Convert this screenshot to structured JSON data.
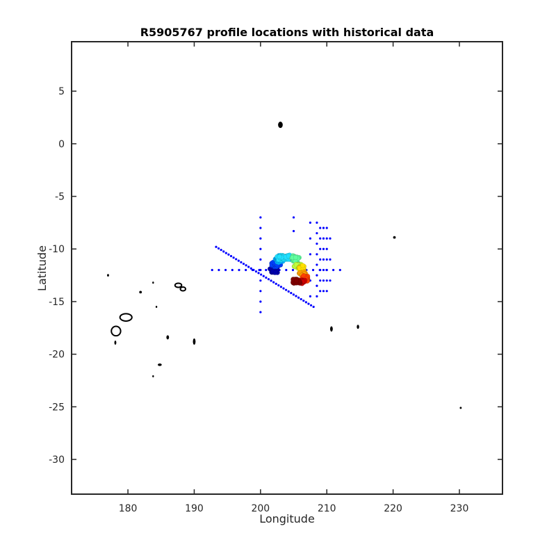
{
  "chart_data": {
    "type": "scatter",
    "title": "R5905767 profile locations with historical data",
    "xlabel": "Longitude",
    "ylabel": "Latitude",
    "xlim": [
      171.5,
      236.5
    ],
    "ylim": [
      -33.3,
      9.7
    ],
    "x_ticks": [
      180,
      190,
      200,
      210,
      220,
      230
    ],
    "y_ticks": [
      5,
      0,
      -5,
      -10,
      -15,
      -20,
      -25,
      -30
    ],
    "x_tick_labels": [
      "180",
      "190",
      "200",
      "210",
      "220",
      "230"
    ],
    "y_tick_labels": [
      "5",
      "0",
      "-5",
      "-10",
      "-15",
      "-20",
      "-25",
      "-30"
    ],
    "grid": false,
    "legend": "none",
    "colormap": "jet",
    "colors": {
      "historical": "#0000ff",
      "coastline": "#000000",
      "axis": "#262626"
    },
    "series": [
      {
        "kind": "historical",
        "segments": [
          {
            "from": [
              193.3,
              -9.8
            ],
            "to": [
              208.0,
              -15.5
            ],
            "count": 40
          },
          {
            "from": [
              192.7,
              -12.0
            ],
            "to": [
              212.0,
              -12.0
            ],
            "count": 20
          }
        ],
        "columns": [
          {
            "x": 200.0,
            "ys": [
              -7.0,
              -8.0,
              -9.0,
              -10.0,
              -11.0,
              -12.0,
              -13.0,
              -14.0,
              -15.0,
              -16.0
            ]
          },
          {
            "x": 205.0,
            "ys": [
              -7.0,
              -8.3
            ]
          },
          {
            "x": 207.5,
            "ys": [
              -7.5,
              -9.0,
              -10.5,
              -13.0,
              -14.5
            ]
          },
          {
            "x": 208.5,
            "ys": [
              -7.5,
              -8.5,
              -9.5,
              -10.5,
              -11.5,
              -12.5,
              -13.5,
              -14.5
            ]
          },
          {
            "x": 209.0,
            "ys": [
              -8.0,
              -9.0,
              -10.0,
              -11.0,
              -12.0,
              -13.0,
              -14.0
            ]
          },
          {
            "x": 209.5,
            "ys": [
              -8.0,
              -9.0,
              -10.0,
              -11.0,
              -12.0,
              -13.0,
              -14.0
            ]
          },
          {
            "x": 210.0,
            "ys": [
              -8.0,
              -9.0,
              -10.0,
              -11.0,
              -12.0,
              -13.0,
              -14.0
            ]
          },
          {
            "x": 210.5,
            "ys": [
              -9.0,
              -11.0,
              -13.0
            ]
          }
        ]
      },
      {
        "kind": "profiles",
        "clusters": [
          {
            "center": [
              202.0,
              -12.0
            ],
            "spread": [
              0.9,
              0.35
            ],
            "count": 60,
            "color": "#0000aa"
          },
          {
            "center": [
              202.3,
              -11.5
            ],
            "spread": [
              0.8,
              0.3
            ],
            "count": 40,
            "color": "#0040ff"
          },
          {
            "center": [
              202.8,
              -10.9
            ],
            "spread": [
              1.0,
              0.4
            ],
            "count": 40,
            "color": "#00b0ff"
          },
          {
            "center": [
              203.5,
              -10.8
            ],
            "spread": [
              1.3,
              0.35
            ],
            "count": 50,
            "color": "#20e0ff"
          },
          {
            "center": [
              205.2,
              -10.9
            ],
            "spread": [
              0.8,
              0.45
            ],
            "count": 50,
            "color": "#60ffa0"
          },
          {
            "center": [
              205.6,
              -11.6
            ],
            "spread": [
              0.6,
              0.3
            ],
            "count": 30,
            "color": "#c0ff40"
          },
          {
            "center": [
              206.2,
              -11.8
            ],
            "spread": [
              0.6,
              0.35
            ],
            "count": 30,
            "color": "#ffe000"
          },
          {
            "center": [
              206.4,
              -12.4
            ],
            "spread": [
              0.7,
              0.3
            ],
            "count": 35,
            "color": "#ffa000"
          },
          {
            "center": [
              206.8,
              -12.8
            ],
            "spread": [
              0.6,
              0.3
            ],
            "count": 30,
            "color": "#ff4000"
          },
          {
            "center": [
              206.0,
              -13.1
            ],
            "spread": [
              1.0,
              0.3
            ],
            "count": 50,
            "color": "#d00000"
          },
          {
            "center": [
              205.3,
              -13.1
            ],
            "spread": [
              0.8,
              0.3
            ],
            "count": 45,
            "color": "#800000"
          }
        ]
      }
    ],
    "coastlines": [
      {
        "type": "ring",
        "center": [
          178.2,
          -17.8
        ],
        "rx": 0.7,
        "ry": 0.45
      },
      {
        "type": "ring",
        "center": [
          179.7,
          -16.5
        ],
        "rx": 0.9,
        "ry": 0.35
      },
      {
        "type": "ring",
        "center": [
          187.6,
          -13.45
        ],
        "rx": 0.5,
        "ry": 0.2
      },
      {
        "type": "ring",
        "center": [
          188.3,
          -13.8
        ],
        "rx": 0.4,
        "ry": 0.18
      },
      {
        "type": "blob",
        "center": [
          203.0,
          1.8
        ],
        "rx": 0.35,
        "ry": 0.3
      },
      {
        "type": "blob",
        "center": [
          177.0,
          -12.5
        ],
        "rx": 0.15,
        "ry": 0.12
      },
      {
        "type": "blob",
        "center": [
          181.9,
          -14.1
        ],
        "rx": 0.2,
        "ry": 0.12
      },
      {
        "type": "blob",
        "center": [
          183.8,
          -13.2
        ],
        "rx": 0.12,
        "ry": 0.1
      },
      {
        "type": "blob",
        "center": [
          184.3,
          -15.5
        ],
        "rx": 0.12,
        "ry": 0.1
      },
      {
        "type": "blob",
        "center": [
          178.1,
          -18.9
        ],
        "rx": 0.15,
        "ry": 0.2
      },
      {
        "type": "blob",
        "center": [
          186.0,
          -18.4
        ],
        "rx": 0.2,
        "ry": 0.2
      },
      {
        "type": "blob",
        "center": [
          190.0,
          -18.8
        ],
        "rx": 0.2,
        "ry": 0.3
      },
      {
        "type": "blob",
        "center": [
          184.8,
          -21.0
        ],
        "rx": 0.3,
        "ry": 0.12
      },
      {
        "type": "blob",
        "center": [
          183.8,
          -22.1
        ],
        "rx": 0.12,
        "ry": 0.1
      },
      {
        "type": "blob",
        "center": [
          220.2,
          -8.9
        ],
        "rx": 0.2,
        "ry": 0.12
      },
      {
        "type": "blob",
        "center": [
          210.7,
          -17.6
        ],
        "rx": 0.2,
        "ry": 0.25
      },
      {
        "type": "blob",
        "center": [
          214.7,
          -17.4
        ],
        "rx": 0.18,
        "ry": 0.2
      },
      {
        "type": "blob",
        "center": [
          230.2,
          -25.1
        ],
        "rx": 0.15,
        "ry": 0.1
      }
    ]
  }
}
